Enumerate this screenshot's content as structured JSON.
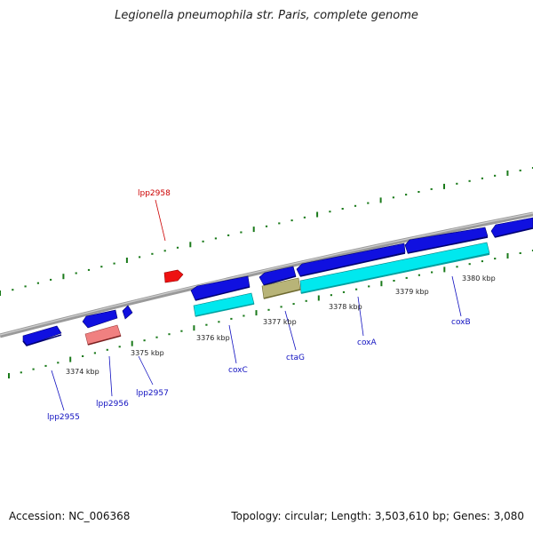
{
  "title": "Legionella pneumophila str. Paris, complete genome",
  "footer": {
    "accession": "Accession: NC_006368",
    "stats": "Topology: circular; Length: 3,503,610 bp; Genes: 3,080"
  },
  "colors": {
    "backbone": "#8a8a8a",
    "ruler_ticks": "#1a7a1a",
    "cds": "#1010e0",
    "cds_label": "#1010c0",
    "pseudo_red": "#ee1111",
    "pseudo_label": "#cc0000",
    "rna_cyan": "#00e8ee",
    "rna_khaki": "#b8b478",
    "rna_pink": "#f08080"
  },
  "tick_labels": [
    "3374 kbp",
    "3375 kbp",
    "3376 kbp",
    "3377 kbp",
    "3378 kbp",
    "3379 kbp",
    "3380 kbp"
  ],
  "gene_labels": [
    "lpp2955",
    "lpp2956",
    "lpp2957",
    "coxC",
    "ctaG",
    "coxA",
    "coxB",
    "lpp2958"
  ]
}
